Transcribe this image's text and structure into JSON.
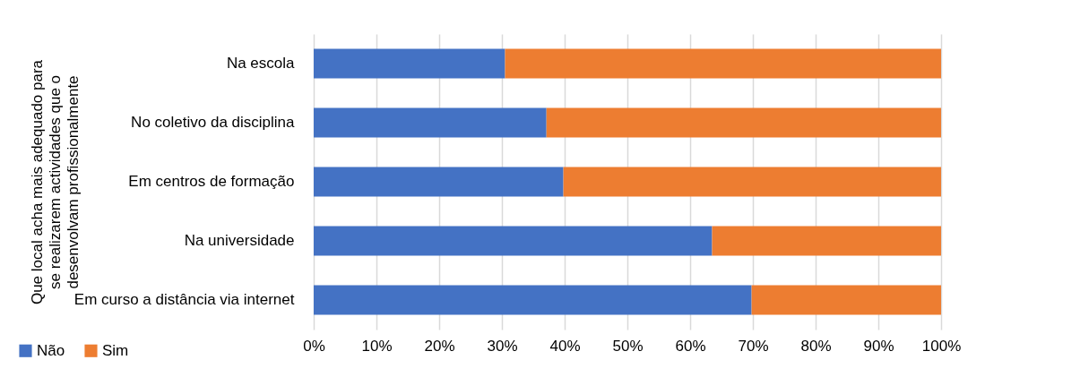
{
  "chart_data": {
    "type": "bar",
    "orientation": "horizontal",
    "stacked": true,
    "ylabel": "Que local acha mais adequado para se realizarem actividades que o desenvolvam profissionalmente",
    "categories": [
      "Na escola",
      "No coletivo da disciplina",
      "Em centros de formação",
      "Na universidade",
      "Em curso a distância via internet"
    ],
    "series": [
      {
        "name": "Não",
        "color": "#4472c4",
        "values": [
          30.5,
          37.1,
          39.8,
          63.5,
          69.8
        ]
      },
      {
        "name": "Sim",
        "color": "#ed7d31",
        "values": [
          69.5,
          62.9,
          60.2,
          36.5,
          30.2
        ]
      }
    ],
    "xlim": [
      0,
      100
    ],
    "xticks": [
      {
        "value": 0,
        "label": "0%"
      },
      {
        "value": 10,
        "label": "10%"
      },
      {
        "value": 20,
        "label": "20%"
      },
      {
        "value": 30,
        "label": "30%"
      },
      {
        "value": 40,
        "label": "40%"
      },
      {
        "value": 50,
        "label": "50%"
      },
      {
        "value": 60,
        "label": "60%"
      },
      {
        "value": 70,
        "label": "70%"
      },
      {
        "value": 80,
        "label": "80%"
      },
      {
        "value": 90,
        "label": "90%"
      },
      {
        "value": 100,
        "label": "100%"
      }
    ],
    "grid": "x",
    "legend": "bottom left"
  }
}
